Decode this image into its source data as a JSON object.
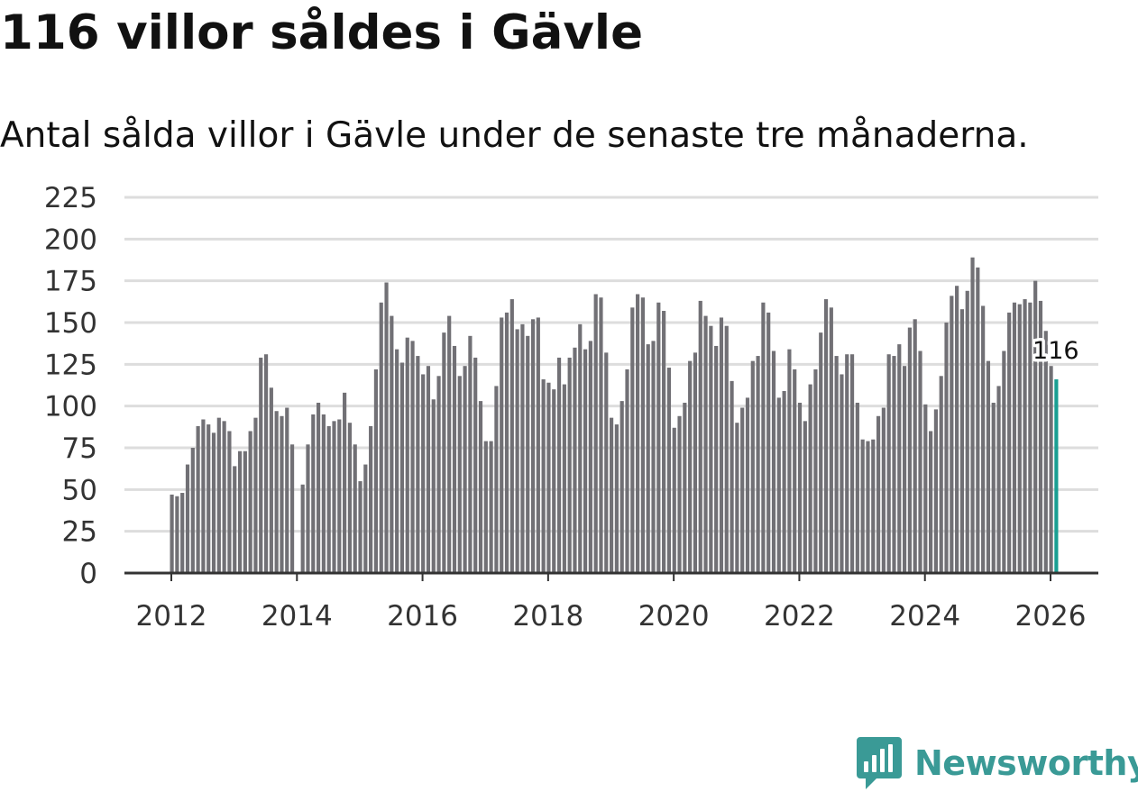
{
  "title": "116 villor såldes i Gävle",
  "subtitle": "Antal sålda villor i Gävle under de senaste tre månaderna.",
  "brand": {
    "name": "Newsworthy",
    "icon": "newsworthy-logo-icon",
    "color": "#3a9a96"
  },
  "colors": {
    "bar": "#717075",
    "highlight": "#1a9e92",
    "grid": "#dddddd",
    "axis": "#333333"
  },
  "chart_data": {
    "type": "bar",
    "title": "116 villor såldes i Gävle",
    "subtitle": "Antal sålda villor i Gävle under de senaste tre månaderna.",
    "xlabel": "",
    "ylabel": "",
    "ylim": [
      0,
      225
    ],
    "yticks": [
      0,
      25,
      50,
      75,
      100,
      125,
      150,
      175,
      200,
      225
    ],
    "yticklabels": [
      "0",
      "25",
      "50",
      "75",
      "100",
      "125",
      "150",
      "175",
      "200",
      "225"
    ],
    "xlim": [
      2012,
      2026.3
    ],
    "xticks": [
      2012,
      2014,
      2016,
      2018,
      2020,
      2022,
      2024,
      2026
    ],
    "xticklabels": [
      "2012",
      "2014",
      "2016",
      "2018",
      "2020",
      "2022",
      "2024",
      "2026"
    ],
    "grid": true,
    "start": [
      2012,
      1
    ],
    "highlight_label": "116",
    "values": [
      47,
      46,
      48,
      65,
      75,
      88,
      92,
      89,
      84,
      93,
      91,
      85,
      64,
      73,
      73,
      85,
      93,
      129,
      131,
      111,
      97,
      94,
      99,
      77,
      null,
      53,
      77,
      95,
      102,
      95,
      88,
      91,
      92,
      108,
      90,
      77,
      55,
      65,
      88,
      122,
      162,
      174,
      154,
      134,
      126,
      141,
      139,
      130,
      119,
      124,
      104,
      118,
      144,
      154,
      136,
      118,
      124,
      142,
      129,
      103,
      79,
      79,
      112,
      153,
      156,
      164,
      146,
      149,
      142,
      152,
      153,
      116,
      114,
      110,
      129,
      113,
      129,
      135,
      149,
      134,
      139,
      167,
      165,
      132,
      93,
      89,
      103,
      122,
      159,
      167,
      165,
      137,
      139,
      162,
      157,
      123,
      87,
      94,
      102,
      127,
      132,
      163,
      154,
      148,
      136,
      153,
      148,
      115,
      90,
      99,
      105,
      127,
      130,
      162,
      156,
      133,
      105,
      109,
      134,
      122,
      102,
      91,
      113,
      122,
      144,
      164,
      159,
      130,
      119,
      131,
      131,
      102,
      80,
      79,
      80,
      94,
      99,
      131,
      130,
      137,
      124,
      147,
      152,
      133,
      101,
      85,
      98,
      118,
      150,
      166,
      172,
      158,
      169,
      189,
      183,
      160,
      127,
      102,
      112,
      133,
      156,
      162,
      161,
      164,
      162,
      175,
      163,
      145,
      124,
      116
    ]
  }
}
